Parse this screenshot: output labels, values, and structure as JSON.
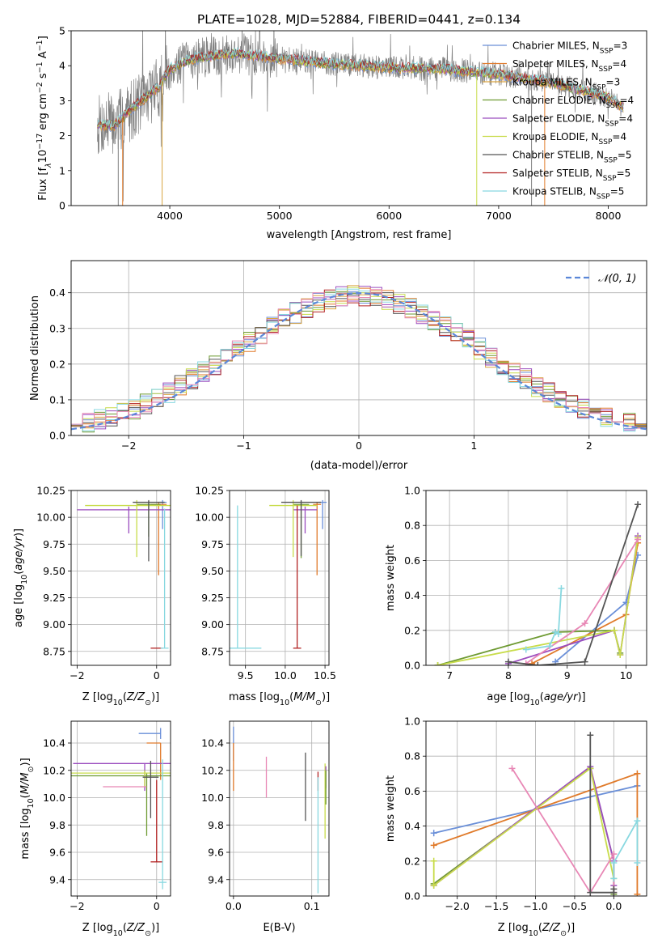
{
  "title": "PLATE=1028, MJD=52884, FIBERID=0441, z=0.134",
  "colors": {
    "chabrier_miles": "#6a8fd8",
    "salpeter_miles": "#e07a2a",
    "kroupa_miles": "#d9a441",
    "chabrier_elodie": "#6e9a32",
    "salpeter_elodie": "#9b4dbf",
    "kroupa_elodie": "#c8dc4a",
    "chabrier_stelib": "#555555",
    "salpeter_stelib": "#b22222",
    "kroupa_stelib": "#88d8e0",
    "data": "#808080",
    "normal": "#5b87d8"
  },
  "legend": [
    {
      "label": "Chabrier MILES, N",
      "sub": "SSP",
      "val": "=3",
      "color": "#6a8fd8"
    },
    {
      "label": "Salpeter MILES, N",
      "sub": "SSP",
      "val": "=4",
      "color": "#e07a2a"
    },
    {
      "label": "Kroupa MILES, N",
      "sub": "SSP",
      "val": "=3",
      "color": "#d9a441"
    },
    {
      "label": "Chabrier ELODIE, N",
      "sub": "SSP",
      "val": "=4",
      "color": "#6e9a32"
    },
    {
      "label": "Salpeter ELODIE, N",
      "sub": "SSP",
      "val": "=4",
      "color": "#9b4dbf"
    },
    {
      "label": "Kroupa ELODIE, N",
      "sub": "SSP",
      "val": "=4",
      "color": "#c8dc4a"
    },
    {
      "label": "Chabrier STELIB, N",
      "sub": "SSP",
      "val": "=5",
      "color": "#555555"
    },
    {
      "label": "Salpeter STELIB, N",
      "sub": "SSP",
      "val": "=5",
      "color": "#b22222"
    },
    {
      "label": "Kroupa STELIB, N",
      "sub": "SSP",
      "val": "=5",
      "color": "#88d8e0"
    }
  ],
  "chart_data": [
    {
      "type": "line",
      "id": "spectrum",
      "xlabel": "wavelength [Angstrom, rest frame]",
      "ylabel": "Flux [f",
      "ylabel_unit": "10",
      "xlim": [
        3100,
        8350
      ],
      "ylim": [
        0,
        5
      ],
      "xticks": [
        4000,
        5000,
        6000,
        7000,
        8000
      ],
      "yticks": [
        0,
        1,
        2,
        3,
        4,
        5
      ],
      "continuum": [
        [
          3340,
          2.3
        ],
        [
          3500,
          2.3
        ],
        [
          3700,
          2.9
        ],
        [
          3900,
          3.4
        ],
        [
          4000,
          3.9
        ],
        [
          4200,
          4.2
        ],
        [
          4600,
          4.35
        ],
        [
          5000,
          4.2
        ],
        [
          5500,
          4.05
        ],
        [
          6000,
          3.95
        ],
        [
          6500,
          3.9
        ],
        [
          7000,
          3.75
        ],
        [
          7500,
          3.5
        ],
        [
          8000,
          3.1
        ],
        [
          8140,
          2.8
        ]
      ]
    },
    {
      "type": "histogram",
      "id": "residuals",
      "xlabel": "(data-model)/error",
      "ylabel": "Normed distribution",
      "xlim": [
        -2.5,
        2.5
      ],
      "ylim": [
        0,
        0.49
      ],
      "xticks": [
        -2,
        -1,
        0,
        1,
        2
      ],
      "yticks": [
        0,
        0.1,
        0.2,
        0.3,
        0.4
      ],
      "normal_legend": "𝒩(0, 1)",
      "bin_width": 0.1
    },
    {
      "type": "errorbar",
      "id": "age_vs_Z",
      "xlabel": "Z [log",
      "ylabel": "age  [log",
      "xlim": [
        -2.15,
        0.35
      ],
      "ylim": [
        8.62,
        10.25
      ],
      "xticks": [
        -2,
        0
      ],
      "yticks": [
        8.75,
        9.0,
        9.25,
        9.5,
        9.75,
        10.0,
        10.25
      ],
      "points": [
        {
          "x": 0.15,
          "y": 10.14,
          "xe": 0.1,
          "ye_lo": 0.25,
          "ye_hi": 0.02,
          "c": "#6a8fd8"
        },
        {
          "x": 0.05,
          "y": 10.12,
          "xe": 0.2,
          "ye_lo": 0.66,
          "ye_hi": 0.02,
          "c": "#e07a2a"
        },
        {
          "x": -0.2,
          "y": 10.12,
          "xe": 0.3,
          "ye_lo": 0.3,
          "ye_hi": 0.03,
          "c": "#6e9a32"
        },
        {
          "x": -0.7,
          "y": 10.07,
          "xe": 1.3,
          "ye_lo": 0.22,
          "ye_hi": 0.03,
          "c": "#9b4dbf"
        },
        {
          "x": -0.5,
          "y": 10.11,
          "xe": 1.3,
          "ye_lo": 0.48,
          "ye_hi": 0.05,
          "c": "#c8dc4a"
        },
        {
          "x": -0.2,
          "y": 10.14,
          "xe": 0.4,
          "ye_lo": 0.55,
          "ye_hi": 0.02,
          "c": "#555555"
        },
        {
          "x": 0.0,
          "y": 8.78,
          "xe": 0.15,
          "ye_lo": 0.0,
          "ye_hi": 0.0,
          "c": "#b22222"
        },
        {
          "x": 0.2,
          "y": 8.78,
          "xe": 0.1,
          "ye_lo": 0.0,
          "ye_hi": 1.3,
          "c": "#88d8e0"
        }
      ]
    },
    {
      "type": "errorbar",
      "id": "age_vs_mass",
      "xlabel": "mass [log",
      "xlim": [
        9.3,
        10.55
      ],
      "ylim": [
        8.62,
        10.25
      ],
      "xticks": [
        9.5,
        10.0,
        10.5
      ],
      "yticks": [
        8.75,
        9.0,
        9.25,
        9.5,
        9.75,
        10.0,
        10.25
      ],
      "points": [
        {
          "x": 10.47,
          "y": 10.14,
          "xe": 0.05,
          "ye_lo": 0.25,
          "ye_hi": 0.02,
          "c": "#6a8fd8"
        },
        {
          "x": 10.4,
          "y": 10.12,
          "xe": 0.05,
          "ye_lo": 0.66,
          "ye_hi": 0.02,
          "c": "#e07a2a"
        },
        {
          "x": 10.2,
          "y": 10.12,
          "xe": 0.1,
          "ye_lo": 0.5,
          "ye_hi": 0.03,
          "c": "#6e9a32"
        },
        {
          "x": 10.25,
          "y": 10.07,
          "xe": 0.15,
          "ye_lo": 0.22,
          "ye_hi": 0.03,
          "c": "#9b4dbf"
        },
        {
          "x": 10.1,
          "y": 10.11,
          "xe": 0.3,
          "ye_lo": 0.48,
          "ye_hi": 0.05,
          "c": "#c8dc4a"
        },
        {
          "x": 10.2,
          "y": 10.14,
          "xe": 0.25,
          "ye_lo": 0.5,
          "ye_hi": 0.02,
          "c": "#555555"
        },
        {
          "x": 10.15,
          "y": 8.78,
          "xe": 0.05,
          "ye_lo": 0.0,
          "ye_hi": 1.33,
          "c": "#b22222"
        },
        {
          "x": 9.4,
          "y": 8.78,
          "xe": 0.3,
          "ye_lo": 0.0,
          "ye_hi": 1.33,
          "c": "#88d8e0"
        }
      ]
    },
    {
      "type": "line",
      "id": "weight_vs_age",
      "xlabel": "age  [log",
      "ylabel": "mass weight",
      "xlim": [
        6.6,
        10.35
      ],
      "ylim": [
        0,
        1
      ],
      "xticks": [
        7,
        8,
        9,
        10
      ],
      "yticks": [
        0,
        0.2,
        0.4,
        0.6,
        0.8,
        1.0
      ],
      "series": [
        {
          "c": "#6a8fd8",
          "x": [
            8.8,
            10.0,
            10.2
          ],
          "y": [
            0.02,
            0.36,
            0.63
          ]
        },
        {
          "c": "#e07a2a",
          "x": [
            8.4,
            10.0,
            10.2
          ],
          "y": [
            0.01,
            0.29,
            0.7
          ]
        },
        {
          "c": "#6e9a32",
          "x": [
            6.8,
            8.8,
            9.8,
            9.9
          ],
          "y": [
            0.0,
            0.19,
            0.2,
            0.07
          ]
        },
        {
          "c": "#9b4dbf",
          "x": [
            8.0,
            9.8,
            9.9,
            10.2
          ],
          "y": [
            0.01,
            0.2,
            0.06,
            0.74
          ]
        },
        {
          "c": "#c8dc4a",
          "x": [
            6.8,
            9.8,
            9.9,
            10.2
          ],
          "y": [
            0.0,
            0.2,
            0.06,
            0.73
          ]
        },
        {
          "c": "#e887b5",
          "x": [
            8.3,
            9.3,
            10.2
          ],
          "y": [
            0.01,
            0.24,
            0.72
          ]
        },
        {
          "c": "#555555",
          "x": [
            8.0,
            8.5,
            9.3,
            10.2
          ],
          "y": [
            0.02,
            0.0,
            0.02,
            0.92
          ]
        },
        {
          "c": "#88d8e0",
          "x": [
            8.3,
            8.7,
            8.8,
            8.85,
            8.9
          ],
          "y": [
            0.09,
            0.11,
            0.19,
            0.18,
            0.44
          ]
        }
      ]
    },
    {
      "type": "errorbar",
      "id": "mass_vs_Z",
      "xlabel": "Z [log",
      "ylabel": "mass [log",
      "xlim": [
        -2.15,
        0.35
      ],
      "ylim": [
        9.28,
        10.56
      ],
      "xticks": [
        -2,
        0
      ],
      "yticks": [
        9.4,
        9.6,
        9.8,
        10.0,
        10.2,
        10.4
      ],
      "points": [
        {
          "x": 0.1,
          "y": 10.47,
          "xe_lo": 0.55,
          "xe_hi": 0.0,
          "ye": 0.04,
          "c": "#6a8fd8"
        },
        {
          "x": 0.1,
          "y": 10.4,
          "xe_lo": 0.35,
          "xe_hi": 0.0,
          "ye_lo": 0.0,
          "ye_hi": 0.0,
          "vy": [
            10.13,
            10.4
          ],
          "c": "#e07a2a"
        },
        {
          "x": -0.25,
          "y": 10.16,
          "xe": 1.9,
          "ye_lo": 0.44,
          "ye_hi": 0.02,
          "c": "#6e9a32"
        },
        {
          "x": -0.3,
          "y": 10.25,
          "xe": 1.8,
          "ye_lo": 0.2,
          "ye_hi": 0.0,
          "c": "#9b4dbf"
        },
        {
          "x": -0.3,
          "y": 10.18,
          "xe": 1.9,
          "ye_lo": 0.1,
          "ye_hi": 0.02,
          "c": "#c8dc4a"
        },
        {
          "x": -0.15,
          "y": 10.15,
          "xe": 0.2,
          "ye_lo": 0.3,
          "ye_hi": 0.12,
          "c": "#555555"
        },
        {
          "x": 0.0,
          "y": 9.53,
          "xe": 0.15,
          "ye_lo": 0.0,
          "ye_hi": 0.6,
          "c": "#b22222"
        },
        {
          "x": 0.15,
          "y": 9.38,
          "xe": 0.1,
          "ye_lo": 0.05,
          "ye_hi": 0.9,
          "c": "#88d8e0"
        },
        {
          "x": -0.8,
          "y": 10.08,
          "xe": 0.55,
          "ye_lo": 0.0,
          "ye_hi": 0.0,
          "c": "#e887b5"
        }
      ]
    },
    {
      "type": "errorbar",
      "id": "mass_vs_ebv",
      "xlabel": "E(B-V)",
      "xlim": [
        -0.005,
        0.122
      ],
      "ylim": [
        9.28,
        10.56
      ],
      "xticks": [
        0.0,
        0.1
      ],
      "yticks": [
        9.4,
        9.6,
        9.8,
        10.0,
        10.2,
        10.4
      ],
      "points": [
        {
          "x": 0.0,
          "y": 10.47,
          "ye_lo": 0.2,
          "ye_hi": 0.05,
          "c": "#6a8fd8"
        },
        {
          "x": 0.0,
          "y": 10.25,
          "ye_lo": 0.2,
          "ye_hi": 0.15,
          "c": "#e07a2a"
        },
        {
          "x": 0.042,
          "y": 10.15,
          "ye_lo": 0.15,
          "ye_hi": 0.15,
          "c": "#e887b5"
        },
        {
          "x": 0.092,
          "y": 10.08,
          "ye_lo": 0.25,
          "ye_hi": 0.25,
          "c": "#555555"
        },
        {
          "x": 0.108,
          "y": 10.12,
          "ye_lo": 0.07,
          "ye_hi": 0.07,
          "c": "#b22222"
        },
        {
          "x": 0.108,
          "y": 9.6,
          "ye_lo": 0.3,
          "ye_hi": 0.55,
          "c": "#88d8e0"
        },
        {
          "x": 0.117,
          "y": 10.0,
          "ye_lo": 0.3,
          "ye_hi": 0.25,
          "c": "#c8dc4a"
        },
        {
          "x": 0.118,
          "y": 10.15,
          "ye_lo": 0.08,
          "ye_hi": 0.08,
          "c": "#9b4dbf"
        },
        {
          "x": 0.118,
          "y": 10.1,
          "ye_lo": 0.15,
          "ye_hi": 0.1,
          "c": "#6e9a32"
        }
      ]
    },
    {
      "type": "line",
      "id": "weight_vs_Z",
      "xlabel": "Z [log",
      "ylabel": "mass weight",
      "xlim": [
        -2.4,
        0.42
      ],
      "ylim": [
        0,
        1
      ],
      "xticks": [
        -2.0,
        -1.5,
        -1.0,
        -0.5,
        0.0
      ],
      "yticks": [
        0,
        0.2,
        0.4,
        0.6,
        0.8,
        1.0
      ],
      "series": [
        {
          "c": "#6a8fd8",
          "x": [
            -2.3,
            0.3
          ],
          "y": [
            0.36,
            0.63
          ]
        },
        {
          "c": "#e07a2a",
          "x": [
            -2.3,
            0.3,
            0.3
          ],
          "y": [
            0.29,
            0.7,
            0.01
          ]
        },
        {
          "c": "#6e9a32",
          "x": [
            -2.3,
            -0.3,
            0.0,
            0.0
          ],
          "y": [
            0.07,
            0.73,
            0.2,
            0.01
          ]
        },
        {
          "c": "#9b4dbf",
          "x": [
            -2.3,
            -0.3,
            0.0,
            0.0
          ],
          "y": [
            0.06,
            0.74,
            0.2,
            0.06
          ]
        },
        {
          "c": "#c8dc4a",
          "x": [
            -2.3,
            -2.3,
            -0.3,
            0.0
          ],
          "y": [
            0.2,
            0.06,
            0.73,
            0.1
          ]
        },
        {
          "c": "#e887b5",
          "x": [
            -1.3,
            -0.3,
            0.0,
            0.0
          ],
          "y": [
            0.73,
            0.02,
            0.24,
            0.02
          ]
        },
        {
          "c": "#555555",
          "x": [
            -0.3,
            -0.3,
            0.0,
            0.0
          ],
          "y": [
            0.92,
            0.02,
            0.02,
            0.04
          ]
        },
        {
          "c": "#88d8e0",
          "x": [
            0.0,
            0.0,
            0.3,
            0.3
          ],
          "y": [
            0.1,
            0.19,
            0.43,
            0.19
          ]
        }
      ]
    }
  ]
}
